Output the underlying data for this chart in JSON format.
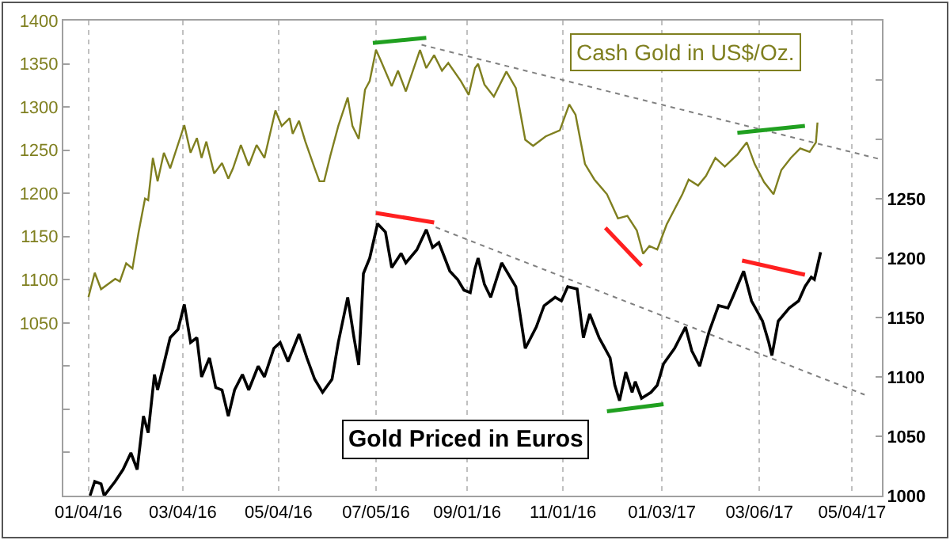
{
  "chart_data": {
    "type": "line",
    "legend": false,
    "grid": "x",
    "marker": "none",
    "xlim": [
      "2015-12-19",
      "2017-05-23"
    ],
    "xticks": [
      {
        "value": "2016-01-04",
        "label": "01/04/16"
      },
      {
        "value": "2016-03-04",
        "label": "03/04/16"
      },
      {
        "value": "2016-05-04",
        "label": "05/04/16"
      },
      {
        "value": "2016-07-05",
        "label": "07/05/16"
      },
      {
        "value": "2016-09-01",
        "label": "09/01/16"
      },
      {
        "value": "2016-11-01",
        "label": "11/01/16"
      },
      {
        "value": "2017-01-03",
        "label": "01/03/17"
      },
      {
        "value": "2017-03-06",
        "label": "03/06/17"
      },
      {
        "value": "2017-05-04",
        "label": "05/04/17"
      }
    ],
    "ylim": [
      850,
      1400
    ],
    "yticks": [
      {
        "value": 900,
        "label": null
      },
      {
        "value": 950,
        "label": null
      },
      {
        "value": 1000,
        "label": null
      },
      1050,
      1100,
      1150,
      1200,
      1250,
      1300,
      1350,
      1400
    ],
    "y2lim": [
      1000,
      1400
    ],
    "y2ticks": [
      1000,
      1050,
      1100,
      1150,
      1200,
      1250,
      {
        "value": 1300,
        "label": null
      },
      {
        "value": 1350,
        "label": null
      }
    ],
    "series": [
      {
        "name": "Cash Gold in US$/Oz.",
        "color": "#7f7f1f",
        "axis": "y",
        "line_style": "solid",
        "x": [
          "2016-01-04",
          "2016-01-08",
          "2016-01-12",
          "2016-01-21",
          "2016-01-24",
          "2016-01-28",
          "2016-02-01",
          "2016-02-05",
          "2016-02-09",
          "2016-02-11",
          "2016-02-14",
          "2016-02-17",
          "2016-02-21",
          "2016-02-25",
          "2016-03-05",
          "2016-03-09",
          "2016-03-13",
          "2016-03-16",
          "2016-03-19",
          "2016-03-24",
          "2016-03-29",
          "2016-04-02",
          "2016-04-05",
          "2016-04-10",
          "2016-04-15",
          "2016-04-20",
          "2016-04-25",
          "2016-05-02",
          "2016-05-06",
          "2016-05-11",
          "2016-05-13",
          "2016-05-17",
          "2016-05-21",
          "2016-05-27",
          "2016-05-30",
          "2016-06-02",
          "2016-06-06",
          "2016-06-11",
          "2016-06-17",
          "2016-06-20",
          "2016-06-24",
          "2016-06-28",
          "2016-07-01",
          "2016-07-05",
          "2016-07-08",
          "2016-07-15",
          "2016-07-19",
          "2016-07-24",
          "2016-08-02",
          "2016-08-06",
          "2016-08-11",
          "2016-08-16",
          "2016-08-20",
          "2016-08-28",
          "2016-09-02",
          "2016-09-06",
          "2016-09-08",
          "2016-09-12",
          "2016-09-18",
          "2016-09-26",
          "2016-10-02",
          "2016-10-08",
          "2016-10-13",
          "2016-10-21",
          "2016-10-30",
          "2016-11-05",
          "2016-11-09",
          "2016-11-15",
          "2016-11-21",
          "2016-11-29",
          "2016-12-06",
          "2016-12-12",
          "2016-12-18",
          "2016-12-22",
          "2016-12-26",
          "2016-12-31",
          "2017-01-06",
          "2017-01-12",
          "2017-01-16",
          "2017-01-20",
          "2017-01-26",
          "2017-01-31",
          "2017-02-06",
          "2017-02-12",
          "2017-02-20",
          "2017-02-26",
          "2017-03-03",
          "2017-03-09",
          "2017-03-15",
          "2017-03-20",
          "2017-03-26",
          "2017-04-01",
          "2017-04-07",
          "2017-04-11",
          "2017-04-12"
        ],
        "values": [
          1080,
          1108,
          1089,
          1101,
          1098,
          1119,
          1113,
          1156,
          1194,
          1192,
          1241,
          1214,
          1247,
          1229,
          1279,
          1247,
          1264,
          1241,
          1260,
          1223,
          1235,
          1217,
          1229,
          1256,
          1232,
          1256,
          1241,
          1296,
          1278,
          1287,
          1269,
          1284,
          1260,
          1229,
          1214,
          1214,
          1244,
          1278,
          1311,
          1278,
          1263,
          1320,
          1330,
          1366,
          1354,
          1324,
          1342,
          1318,
          1366,
          1345,
          1360,
          1342,
          1351,
          1330,
          1314,
          1345,
          1350,
          1326,
          1312,
          1341,
          1322,
          1262,
          1255,
          1266,
          1273,
          1303,
          1291,
          1234,
          1216,
          1199,
          1171,
          1174,
          1157,
          1130,
          1139,
          1135,
          1164,
          1185,
          1199,
          1216,
          1209,
          1220,
          1241,
          1231,
          1245,
          1259,
          1234,
          1213,
          1199,
          1227,
          1241,
          1252,
          1248,
          1259,
          1282
        ]
      },
      {
        "name": "Gold Priced in Euros",
        "color": "#000000",
        "axis": "y2",
        "line_style": "solid",
        "x": [
          "2016-01-05",
          "2016-01-08",
          "2016-01-12",
          "2016-01-14",
          "2016-01-21",
          "2016-01-26",
          "2016-01-31",
          "2016-02-04",
          "2016-02-08",
          "2016-02-11",
          "2016-02-15",
          "2016-02-17",
          "2016-02-21",
          "2016-02-25",
          "2016-03-01",
          "2016-03-05",
          "2016-03-09",
          "2016-03-13",
          "2016-03-16",
          "2016-03-21",
          "2016-03-25",
          "2016-03-29",
          "2016-04-02",
          "2016-04-06",
          "2016-04-11",
          "2016-04-15",
          "2016-04-21",
          "2016-04-25",
          "2016-05-01",
          "2016-05-05",
          "2016-05-10",
          "2016-05-17",
          "2016-05-22",
          "2016-05-27",
          "2016-06-01",
          "2016-06-07",
          "2016-06-11",
          "2016-06-17",
          "2016-06-21",
          "2016-06-24",
          "2016-06-27",
          "2016-07-01",
          "2016-07-06",
          "2016-07-11",
          "2016-07-15",
          "2016-07-21",
          "2016-07-24",
          "2016-07-31",
          "2016-08-06",
          "2016-08-10",
          "2016-08-14",
          "2016-08-21",
          "2016-08-26",
          "2016-08-30",
          "2016-09-03",
          "2016-09-06",
          "2016-09-08",
          "2016-09-12",
          "2016-09-16",
          "2016-09-23",
          "2016-10-02",
          "2016-10-08",
          "2016-10-15",
          "2016-10-20",
          "2016-10-27",
          "2016-10-31",
          "2016-11-04",
          "2016-11-10",
          "2016-11-14",
          "2016-11-18",
          "2016-11-24",
          "2016-12-01",
          "2016-12-04",
          "2016-12-07",
          "2016-12-11",
          "2016-12-15",
          "2016-12-17",
          "2016-12-21",
          "2016-12-27",
          "2016-12-31",
          "2017-01-04",
          "2017-01-11",
          "2017-01-18",
          "2017-01-22",
          "2017-01-27",
          "2017-02-02",
          "2017-02-08",
          "2017-02-14",
          "2017-02-17",
          "2017-02-24",
          "2017-03-01",
          "2017-03-08",
          "2017-03-12",
          "2017-03-14",
          "2017-03-18",
          "2017-03-25",
          "2017-03-31",
          "2017-04-04",
          "2017-04-08",
          "2017-04-10",
          "2017-04-14"
        ],
        "values": [
          1000,
          1012,
          1010,
          1000,
          1012,
          1022,
          1036,
          1022,
          1067,
          1053,
          1102,
          1089,
          1111,
          1133,
          1140,
          1161,
          1129,
          1133,
          1100,
          1116,
          1091,
          1089,
          1067,
          1089,
          1102,
          1089,
          1109,
          1100,
          1124,
          1129,
          1113,
          1136,
          1116,
          1098,
          1087,
          1098,
          1129,
          1167,
          1133,
          1110,
          1187,
          1200,
          1229,
          1222,
          1192,
          1204,
          1196,
          1207,
          1224,
          1209,
          1213,
          1189,
          1182,
          1173,
          1171,
          1191,
          1200,
          1178,
          1167,
          1196,
          1176,
          1124,
          1142,
          1160,
          1167,
          1164,
          1176,
          1174,
          1133,
          1153,
          1133,
          1116,
          1093,
          1080,
          1104,
          1087,
          1096,
          1082,
          1087,
          1093,
          1111,
          1124,
          1142,
          1122,
          1109,
          1138,
          1160,
          1158,
          1167,
          1189,
          1164,
          1147,
          1129,
          1118,
          1147,
          1158,
          1164,
          1176,
          1184,
          1182,
          1205
        ]
      },
      {
        "color": "#808080",
        "axis": "y",
        "line_style": "dotted",
        "x": [
          "2016-08-03",
          "2017-05-23"
        ],
        "values": [
          1372,
          1239
        ]
      },
      {
        "color": "#808080",
        "axis": "y2",
        "line_style": "dotted",
        "x": [
          "2016-08-12",
          "2017-05-12"
        ],
        "values": [
          1226,
          1085
        ]
      },
      {
        "color": "#20a020",
        "axis": "y",
        "line_style": "solid",
        "x": [
          "2016-07-03",
          "2016-08-06"
        ],
        "values": [
          1374,
          1380
        ]
      },
      {
        "color": "#20a020",
        "axis": "y",
        "line_style": "solid",
        "x": [
          "2017-02-20",
          "2017-04-04"
        ],
        "values": [
          1270,
          1278
        ]
      },
      {
        "color": "#ff2020",
        "axis": "y",
        "line_style": "solid",
        "x": [
          "2016-11-28",
          "2016-12-21"
        ],
        "values": [
          1160,
          1116
        ]
      },
      {
        "color": "#ff2020",
        "axis": "y2",
        "line_style": "solid",
        "x": [
          "2016-07-05",
          "2016-08-11"
        ],
        "values": [
          1238,
          1230
        ]
      },
      {
        "color": "#20a020",
        "axis": "y2",
        "line_style": "solid",
        "x": [
          "2016-11-29",
          "2017-01-04"
        ],
        "values": [
          1071,
          1077
        ]
      },
      {
        "color": "#ff2020",
        "axis": "y2",
        "line_style": "solid",
        "x": [
          "2017-02-23",
          "2017-04-04"
        ],
        "values": [
          1198,
          1186
        ]
      }
    ]
  }
}
